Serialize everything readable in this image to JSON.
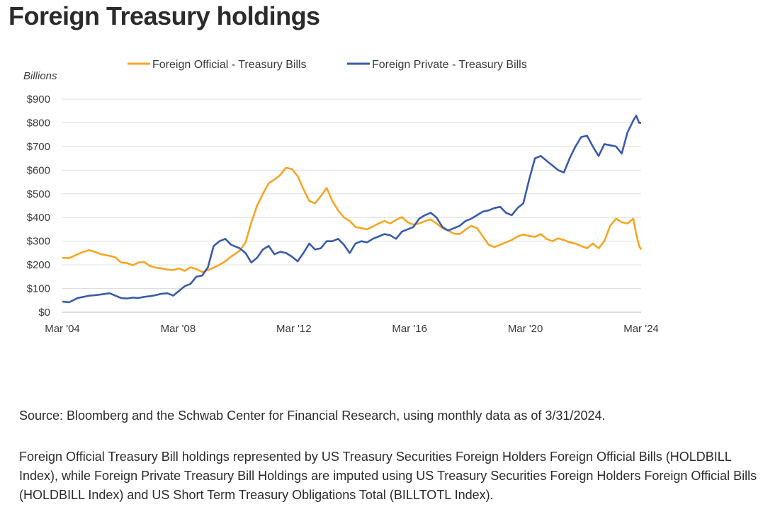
{
  "page": {
    "title": "Foreign Treasury holdings",
    "source": "Source: Bloomberg and the Schwab Center for Financial Research, using monthly data as of 3/31/2024.",
    "note": "Foreign Official Treasury Bill holdings represented by US Treasury Securities Foreign Holders Foreign Official Bills (HOLDBILL Index), while Foreign Private Treasury Bill Holdings are imputed using US Treasury Securities Foreign Holders Foreign Official Bills (HOLDBILL Index) and US Short Term Treasury Obligations Total (BILLTOTL Index)."
  },
  "chart_data": {
    "type": "line",
    "title": "",
    "ylabel": "Billions",
    "xlabel": "",
    "ylim": [
      0,
      900
    ],
    "xlim": [
      2004.17,
      2024.17
    ],
    "grid": true,
    "legend_position": "top",
    "y_ticks": [
      {
        "value": 0,
        "label": "$0"
      },
      {
        "value": 100,
        "label": "$100"
      },
      {
        "value": 200,
        "label": "$200"
      },
      {
        "value": 300,
        "label": "$300"
      },
      {
        "value": 400,
        "label": "$400"
      },
      {
        "value": 500,
        "label": "$500"
      },
      {
        "value": 600,
        "label": "$600"
      },
      {
        "value": 700,
        "label": "$700"
      },
      {
        "value": 800,
        "label": "$800"
      },
      {
        "value": 900,
        "label": "$900"
      }
    ],
    "x_ticks": [
      {
        "value": 2004.17,
        "label": "Mar '04"
      },
      {
        "value": 2008.17,
        "label": "Mar '08"
      },
      {
        "value": 2012.17,
        "label": "Mar '12"
      },
      {
        "value": 2016.17,
        "label": "Mar '16"
      },
      {
        "value": 2020.17,
        "label": "Mar '20"
      },
      {
        "value": 2024.17,
        "label": "Mar '24"
      }
    ],
    "series": [
      {
        "name": "Foreign Official - Treasury Bills",
        "color": "#F5A623",
        "points": [
          [
            2004.17,
            230
          ],
          [
            2004.4,
            228
          ],
          [
            2004.7,
            245
          ],
          [
            2004.9,
            255
          ],
          [
            2005.1,
            262
          ],
          [
            2005.3,
            255
          ],
          [
            2005.5,
            245
          ],
          [
            2005.8,
            238
          ],
          [
            2006.0,
            232
          ],
          [
            2006.2,
            210
          ],
          [
            2006.4,
            208
          ],
          [
            2006.6,
            198
          ],
          [
            2006.8,
            210
          ],
          [
            2007.0,
            212
          ],
          [
            2007.2,
            195
          ],
          [
            2007.4,
            188
          ],
          [
            2007.6,
            185
          ],
          [
            2007.8,
            180
          ],
          [
            2008.0,
            178
          ],
          [
            2008.2,
            185
          ],
          [
            2008.4,
            175
          ],
          [
            2008.6,
            190
          ],
          [
            2008.8,
            182
          ],
          [
            2009.0,
            170
          ],
          [
            2009.2,
            178
          ],
          [
            2009.4,
            188
          ],
          [
            2009.6,
            200
          ],
          [
            2009.8,
            215
          ],
          [
            2010.0,
            235
          ],
          [
            2010.3,
            260
          ],
          [
            2010.5,
            295
          ],
          [
            2010.7,
            380
          ],
          [
            2010.9,
            450
          ],
          [
            2011.1,
            500
          ],
          [
            2011.3,
            545
          ],
          [
            2011.5,
            560
          ],
          [
            2011.7,
            580
          ],
          [
            2011.9,
            610
          ],
          [
            2012.1,
            605
          ],
          [
            2012.3,
            575
          ],
          [
            2012.5,
            520
          ],
          [
            2012.7,
            470
          ],
          [
            2012.9,
            460
          ],
          [
            2013.1,
            490
          ],
          [
            2013.3,
            525
          ],
          [
            2013.5,
            470
          ],
          [
            2013.7,
            430
          ],
          [
            2013.9,
            400
          ],
          [
            2014.1,
            385
          ],
          [
            2014.3,
            360
          ],
          [
            2014.5,
            355
          ],
          [
            2014.7,
            350
          ],
          [
            2014.9,
            362
          ],
          [
            2015.1,
            375
          ],
          [
            2015.3,
            385
          ],
          [
            2015.5,
            375
          ],
          [
            2015.7,
            390
          ],
          [
            2015.9,
            402
          ],
          [
            2016.1,
            380
          ],
          [
            2016.3,
            370
          ],
          [
            2016.5,
            375
          ],
          [
            2016.7,
            385
          ],
          [
            2016.9,
            392
          ],
          [
            2017.1,
            375
          ],
          [
            2017.3,
            355
          ],
          [
            2017.5,
            345
          ],
          [
            2017.7,
            332
          ],
          [
            2017.9,
            330
          ],
          [
            2018.1,
            348
          ],
          [
            2018.3,
            365
          ],
          [
            2018.5,
            355
          ],
          [
            2018.7,
            320
          ],
          [
            2018.9,
            285
          ],
          [
            2019.1,
            275
          ],
          [
            2019.3,
            285
          ],
          [
            2019.5,
            295
          ],
          [
            2019.7,
            305
          ],
          [
            2019.9,
            320
          ],
          [
            2020.1,
            328
          ],
          [
            2020.3,
            322
          ],
          [
            2020.5,
            318
          ],
          [
            2020.7,
            330
          ],
          [
            2020.9,
            310
          ],
          [
            2021.1,
            300
          ],
          [
            2021.3,
            312
          ],
          [
            2021.5,
            305
          ],
          [
            2021.7,
            295
          ],
          [
            2021.9,
            290
          ],
          [
            2022.1,
            280
          ],
          [
            2022.3,
            270
          ],
          [
            2022.5,
            290
          ],
          [
            2022.7,
            270
          ],
          [
            2022.9,
            300
          ],
          [
            2023.1,
            365
          ],
          [
            2023.3,
            395
          ],
          [
            2023.5,
            380
          ],
          [
            2023.7,
            375
          ],
          [
            2023.9,
            395
          ],
          [
            2024.0,
            330
          ],
          [
            2024.1,
            280
          ],
          [
            2024.17,
            265
          ]
        ]
      },
      {
        "name": "Foreign Private - Treasury Bills",
        "color": "#3A5BA9",
        "points": [
          [
            2004.17,
            45
          ],
          [
            2004.4,
            42
          ],
          [
            2004.7,
            60
          ],
          [
            2004.9,
            65
          ],
          [
            2005.1,
            70
          ],
          [
            2005.3,
            72
          ],
          [
            2005.5,
            75
          ],
          [
            2005.8,
            80
          ],
          [
            2006.0,
            70
          ],
          [
            2006.2,
            60
          ],
          [
            2006.4,
            58
          ],
          [
            2006.6,
            62
          ],
          [
            2006.8,
            60
          ],
          [
            2007.0,
            65
          ],
          [
            2007.2,
            68
          ],
          [
            2007.4,
            72
          ],
          [
            2007.6,
            78
          ],
          [
            2007.8,
            80
          ],
          [
            2008.0,
            70
          ],
          [
            2008.2,
            90
          ],
          [
            2008.4,
            110
          ],
          [
            2008.6,
            120
          ],
          [
            2008.8,
            150
          ],
          [
            2009.0,
            155
          ],
          [
            2009.2,
            190
          ],
          [
            2009.4,
            280
          ],
          [
            2009.6,
            300
          ],
          [
            2009.8,
            310
          ],
          [
            2010.0,
            285
          ],
          [
            2010.3,
            270
          ],
          [
            2010.5,
            250
          ],
          [
            2010.7,
            210
          ],
          [
            2010.9,
            230
          ],
          [
            2011.1,
            265
          ],
          [
            2011.3,
            280
          ],
          [
            2011.5,
            245
          ],
          [
            2011.7,
            255
          ],
          [
            2011.9,
            250
          ],
          [
            2012.1,
            235
          ],
          [
            2012.3,
            215
          ],
          [
            2012.5,
            250
          ],
          [
            2012.7,
            290
          ],
          [
            2012.9,
            265
          ],
          [
            2013.1,
            270
          ],
          [
            2013.3,
            300
          ],
          [
            2013.5,
            300
          ],
          [
            2013.7,
            310
          ],
          [
            2013.9,
            285
          ],
          [
            2014.1,
            250
          ],
          [
            2014.3,
            290
          ],
          [
            2014.5,
            300
          ],
          [
            2014.7,
            295
          ],
          [
            2014.9,
            310
          ],
          [
            2015.1,
            320
          ],
          [
            2015.3,
            330
          ],
          [
            2015.5,
            325
          ],
          [
            2015.7,
            310
          ],
          [
            2015.9,
            340
          ],
          [
            2016.1,
            350
          ],
          [
            2016.3,
            360
          ],
          [
            2016.5,
            395
          ],
          [
            2016.7,
            410
          ],
          [
            2016.9,
            420
          ],
          [
            2017.1,
            400
          ],
          [
            2017.3,
            360
          ],
          [
            2017.5,
            345
          ],
          [
            2017.7,
            355
          ],
          [
            2017.9,
            365
          ],
          [
            2018.1,
            385
          ],
          [
            2018.3,
            395
          ],
          [
            2018.5,
            410
          ],
          [
            2018.7,
            425
          ],
          [
            2018.9,
            430
          ],
          [
            2019.1,
            440
          ],
          [
            2019.3,
            445
          ],
          [
            2019.5,
            420
          ],
          [
            2019.7,
            410
          ],
          [
            2019.9,
            440
          ],
          [
            2020.1,
            460
          ],
          [
            2020.3,
            560
          ],
          [
            2020.5,
            650
          ],
          [
            2020.7,
            660
          ],
          [
            2020.9,
            640
          ],
          [
            2021.1,
            620
          ],
          [
            2021.3,
            600
          ],
          [
            2021.5,
            590
          ],
          [
            2021.7,
            650
          ],
          [
            2021.9,
            700
          ],
          [
            2022.1,
            740
          ],
          [
            2022.3,
            745
          ],
          [
            2022.5,
            700
          ],
          [
            2022.7,
            660
          ],
          [
            2022.9,
            710
          ],
          [
            2023.1,
            705
          ],
          [
            2023.3,
            700
          ],
          [
            2023.5,
            670
          ],
          [
            2023.7,
            760
          ],
          [
            2023.9,
            810
          ],
          [
            2024.0,
            830
          ],
          [
            2024.1,
            800
          ],
          [
            2024.17,
            800
          ]
        ]
      }
    ]
  }
}
